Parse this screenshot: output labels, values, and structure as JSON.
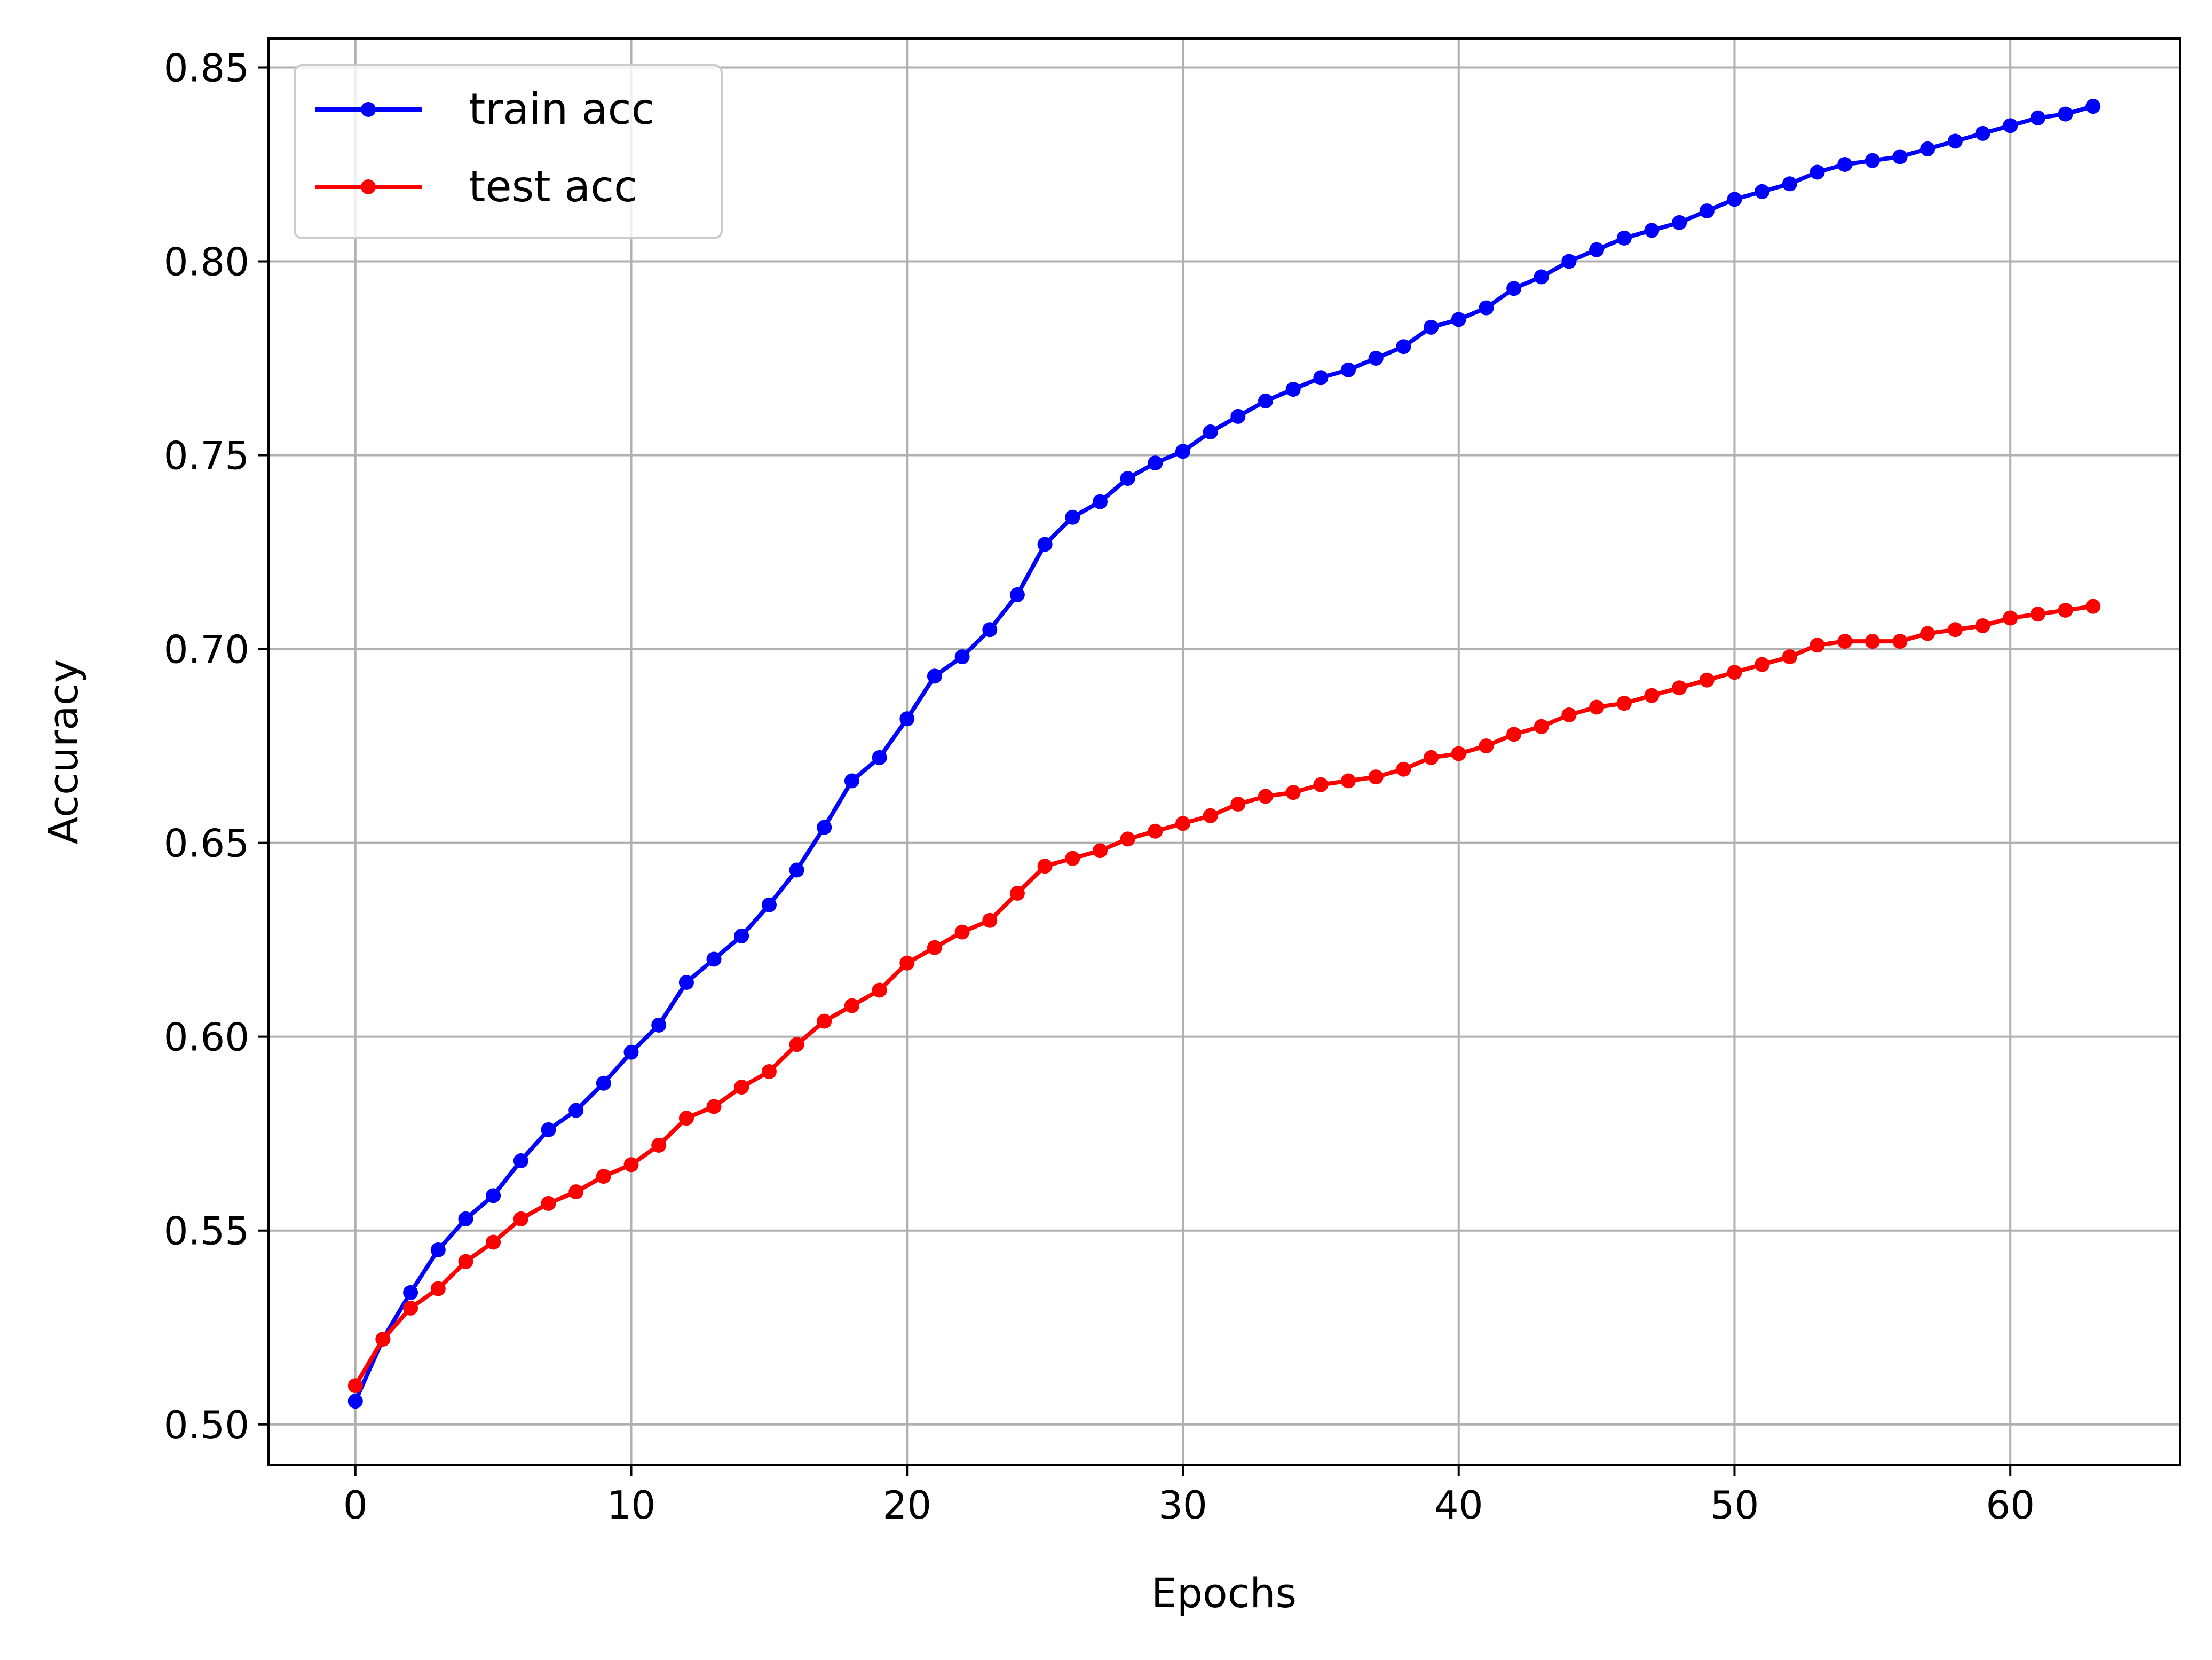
{
  "chart_data": {
    "type": "line",
    "title": "",
    "xlabel": "Epochs",
    "ylabel": "Accuracy",
    "xlim": [
      -3.15,
      66.15
    ],
    "ylim": [
      0.4895,
      0.8575
    ],
    "xticks": [
      0,
      10,
      20,
      30,
      40,
      50,
      60
    ],
    "xtick_labels": [
      "0",
      "10",
      "20",
      "30",
      "40",
      "50",
      "60"
    ],
    "yticks": [
      0.5,
      0.55,
      0.6,
      0.65,
      0.7,
      0.75,
      0.8,
      0.85
    ],
    "ytick_labels": [
      "0.50",
      "0.55",
      "0.60",
      "0.65",
      "0.70",
      "0.75",
      "0.80",
      "0.85"
    ],
    "grid": true,
    "legend_position": "upper-left",
    "x": [
      0,
      1,
      2,
      3,
      4,
      5,
      6,
      7,
      8,
      9,
      10,
      11,
      12,
      13,
      14,
      15,
      16,
      17,
      18,
      19,
      20,
      21,
      22,
      23,
      24,
      25,
      26,
      27,
      28,
      29,
      30,
      31,
      32,
      33,
      34,
      35,
      36,
      37,
      38,
      39,
      40,
      41,
      42,
      43,
      44,
      45,
      46,
      47,
      48,
      49,
      50,
      51,
      52,
      53,
      54,
      55,
      56,
      57,
      58,
      59,
      60,
      61,
      62,
      63
    ],
    "series": [
      {
        "name": "train acc",
        "color": "#0000ff",
        "marker": "circle",
        "values": [
          0.506,
          0.522,
          0.534,
          0.545,
          0.553,
          0.559,
          0.568,
          0.576,
          0.581,
          0.588,
          0.596,
          0.603,
          0.614,
          0.62,
          0.626,
          0.634,
          0.643,
          0.654,
          0.666,
          0.672,
          0.682,
          0.693,
          0.698,
          0.705,
          0.714,
          0.727,
          0.734,
          0.738,
          0.744,
          0.748,
          0.751,
          0.756,
          0.76,
          0.764,
          0.767,
          0.77,
          0.772,
          0.775,
          0.778,
          0.783,
          0.785,
          0.788,
          0.793,
          0.796,
          0.8,
          0.803,
          0.806,
          0.808,
          0.81,
          0.813,
          0.816,
          0.818,
          0.82,
          0.823,
          0.825,
          0.826,
          0.827,
          0.829,
          0.831,
          0.833,
          0.835,
          0.837,
          0.838,
          0.84
        ]
      },
      {
        "name": "test acc",
        "color": "#ff0000",
        "marker": "circle",
        "values": [
          0.51,
          0.522,
          0.53,
          0.535,
          0.542,
          0.547,
          0.553,
          0.557,
          0.56,
          0.564,
          0.567,
          0.572,
          0.579,
          0.582,
          0.587,
          0.591,
          0.598,
          0.604,
          0.608,
          0.612,
          0.619,
          0.623,
          0.627,
          0.63,
          0.637,
          0.644,
          0.646,
          0.648,
          0.651,
          0.653,
          0.655,
          0.657,
          0.66,
          0.662,
          0.663,
          0.665,
          0.666,
          0.667,
          0.669,
          0.672,
          0.673,
          0.675,
          0.678,
          0.68,
          0.683,
          0.685,
          0.686,
          0.688,
          0.69,
          0.692,
          0.694,
          0.696,
          0.698,
          0.701,
          0.702,
          0.702,
          0.702,
          0.704,
          0.705,
          0.706,
          0.708,
          0.709,
          0.71,
          0.711
        ]
      }
    ]
  }
}
